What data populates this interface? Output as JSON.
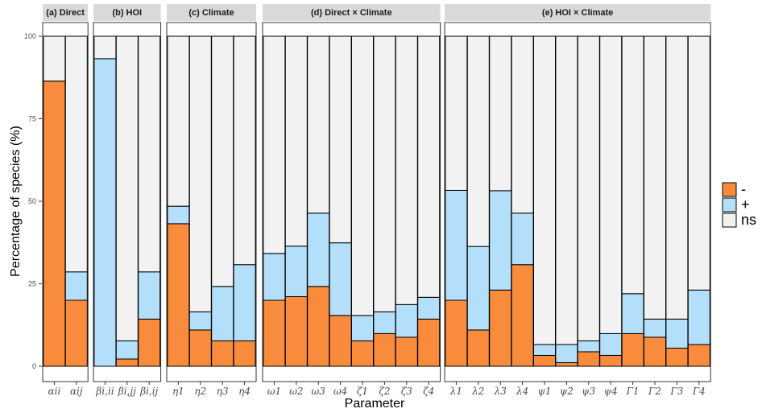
{
  "chart_data": {
    "type": "bar",
    "stacked": true,
    "xlabel": "Parameter",
    "ylabel": "Percentage of species (%)",
    "ylim": [
      0,
      100
    ],
    "yticks": [
      "0",
      "25",
      "50",
      "75",
      "100"
    ],
    "colors": {
      "-": "#F98B3C",
      "+": "#B3DFFA",
      "ns": "#F2F2F2"
    },
    "legend": {
      "position": "right",
      "entries": [
        "-",
        "+",
        "ns"
      ]
    },
    "panels": [
      {
        "title": "(a) Direct",
        "categories": [
          "αii",
          "αij"
        ],
        "series": [
          {
            "name": "-",
            "values": [
              86.4,
              20.0
            ]
          },
          {
            "name": "+",
            "values": [
              0,
              8.6
            ]
          },
          {
            "name": "ns",
            "values": [
              13.6,
              71.4
            ]
          }
        ]
      },
      {
        "title": "(b) HOI",
        "categories": [
          "βi,ii",
          "βi,jj",
          "βi,ij"
        ],
        "series": [
          {
            "name": "-",
            "values": [
              0,
              2.2,
              14.3
            ]
          },
          {
            "name": "+",
            "values": [
              93.2,
              5.5,
              14.3
            ]
          },
          {
            "name": "ns",
            "values": [
              6.8,
              92.3,
              71.4
            ]
          }
        ]
      },
      {
        "title": "(c) Climate",
        "categories": [
          "η1",
          "η2",
          "η3",
          "η4"
        ],
        "series": [
          {
            "name": "-",
            "values": [
              43.2,
              11.0,
              7.7,
              7.7
            ]
          },
          {
            "name": "+",
            "values": [
              5.3,
              5.5,
              16.5,
              23.1
            ]
          },
          {
            "name": "ns",
            "values": [
              51.5,
              83.5,
              75.8,
              69.2
            ]
          }
        ]
      },
      {
        "title": "(d) Direct × Climate",
        "categories": [
          "ω1",
          "ω2",
          "ω3",
          "ω4",
          "ζ1",
          "ζ2",
          "ζ3",
          "ζ4"
        ],
        "series": [
          {
            "name": "-",
            "values": [
              20.0,
              21.1,
              24.2,
              15.4,
              7.7,
              9.9,
              8.8,
              14.3
            ]
          },
          {
            "name": "+",
            "values": [
              14.2,
              15.3,
              22.2,
              22.0,
              7.7,
              6.6,
              9.9,
              6.6
            ]
          },
          {
            "name": "ns",
            "values": [
              65.8,
              63.6,
              53.6,
              62.6,
              84.6,
              83.5,
              81.3,
              79.1
            ]
          }
        ]
      },
      {
        "title": "(e) HOI × Climate",
        "categories": [
          "λ1",
          "λ2",
          "λ3",
          "λ4",
          "ψ1",
          "ψ2",
          "ψ3",
          "ψ4",
          "Γ1",
          "Γ2",
          "Γ3",
          "Γ4"
        ],
        "series": [
          {
            "name": "-",
            "values": [
              20.0,
              11.0,
              23.1,
              30.8,
              3.3,
              1.1,
              4.4,
              3.3,
              9.9,
              8.8,
              5.5,
              6.6
            ]
          },
          {
            "name": "+",
            "values": [
              33.3,
              25.3,
              30.1,
              15.6,
              3.3,
              5.5,
              3.3,
              6.6,
              12.1,
              5.5,
              8.8,
              16.5
            ]
          },
          {
            "name": "ns",
            "values": [
              46.7,
              63.7,
              46.8,
              53.6,
              93.4,
              93.4,
              92.3,
              90.1,
              78.0,
              85.7,
              85.7,
              76.9
            ]
          }
        ]
      }
    ]
  }
}
